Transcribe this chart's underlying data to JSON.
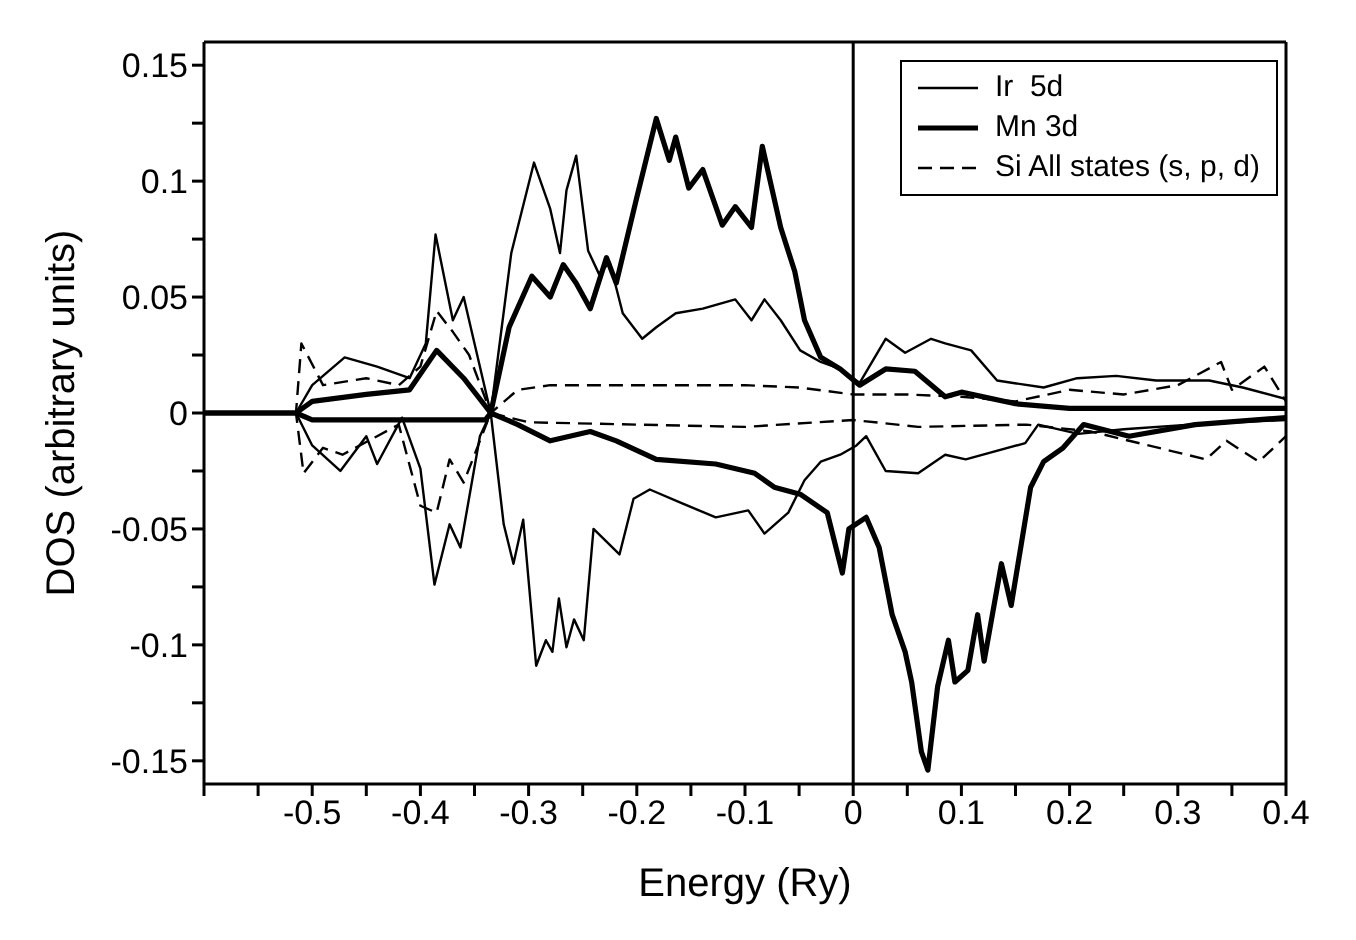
{
  "chart_data": {
    "type": "line",
    "xlabel": "Energy (Ry)",
    "ylabel": "DOS (arbitrary units)",
    "legend": "top right",
    "xlim": [
      -0.6,
      0.4
    ],
    "xticks": [
      {
        "value": -0.6,
        "label": null
      },
      {
        "value": -0.55,
        "label": null
      },
      -0.5,
      {
        "value": -0.45,
        "label": null
      },
      -0.4,
      {
        "value": -0.35,
        "label": null
      },
      -0.3,
      {
        "value": -0.25,
        "label": null
      },
      -0.2,
      {
        "value": -0.15,
        "label": null
      },
      -0.1,
      {
        "value": -0.05,
        "label": null
      },
      0,
      {
        "value": 0.05,
        "label": null
      },
      0.1,
      {
        "value": 0.15,
        "label": null
      },
      0.2,
      {
        "value": 0.25,
        "label": null
      },
      0.3,
      {
        "value": 0.35,
        "label": null
      },
      0.4
    ],
    "ylim": [
      -0.16,
      0.16
    ],
    "yticks": [
      -0.15,
      {
        "value": -0.125,
        "label": null
      },
      -0.1,
      {
        "value": -0.075,
        "label": null
      },
      -0.05,
      {
        "value": -0.025,
        "label": null
      },
      0,
      {
        "value": 0.025,
        "label": null
      },
      0.05,
      {
        "value": 0.075,
        "label": null
      },
      0.1,
      {
        "value": 0.125,
        "label": null
      },
      0.15
    ],
    "ref_lines": [
      {
        "axis": "x",
        "value": 0,
        "color": "#000000"
      }
    ],
    "series": [
      {
        "name": "Ir  5d",
        "color": "#000000",
        "line_style": "solid",
        "x": [
          -0.6,
          -0.515,
          -0.5,
          -0.47,
          -0.44,
          -0.41,
          -0.395,
          -0.386,
          -0.37,
          -0.36,
          -0.35,
          -0.335,
          -0.316,
          -0.295,
          -0.28,
          -0.271,
          -0.265,
          -0.256,
          -0.245,
          -0.235,
          -0.225,
          -0.213,
          -0.195,
          -0.182,
          -0.164,
          -0.139,
          -0.109,
          -0.094,
          -0.082,
          -0.067,
          -0.049,
          -0.03,
          -0.012,
          0.006,
          0.03,
          0.048,
          0.072,
          0.085,
          0.109,
          0.133,
          0.176,
          0.207,
          0.243,
          0.28,
          0.329,
          0.36,
          0.4
        ],
        "values": [
          0,
          0,
          0.012,
          0.024,
          0.02,
          0.015,
          0.03,
          0.077,
          0.04,
          0.05,
          0.03,
          0,
          0.069,
          0.108,
          0.088,
          0.069,
          0.096,
          0.111,
          0.07,
          0.06,
          0.065,
          0.043,
          0.032,
          0.037,
          0.043,
          0.045,
          0.049,
          0.04,
          0.049,
          0.04,
          0.027,
          0.022,
          0.019,
          0.013,
          0.032,
          0.026,
          0.032,
          0.03,
          0.027,
          0.014,
          0.011,
          0.015,
          0.016,
          0.014,
          0.014,
          0.011,
          0.006
        ]
      },
      {
        "name": "Mn 3d",
        "color": "#000000",
        "line_style": "solid",
        "x": [
          -0.6,
          -0.515,
          -0.5,
          -0.45,
          -0.41,
          -0.385,
          -0.36,
          -0.335,
          -0.318,
          -0.297,
          -0.28,
          -0.268,
          -0.256,
          -0.243,
          -0.228,
          -0.219,
          -0.2,
          -0.182,
          -0.17,
          -0.164,
          -0.152,
          -0.139,
          -0.121,
          -0.109,
          -0.094,
          -0.084,
          -0.067,
          -0.054,
          -0.045,
          -0.03,
          -0.012,
          0.006,
          0.03,
          0.057,
          0.085,
          0.1,
          0.15,
          0.2,
          0.3,
          0.4
        ],
        "values": [
          0,
          0,
          0.005,
          0.008,
          0.01,
          0.027,
          0.015,
          0,
          0.037,
          0.059,
          0.05,
          0.064,
          0.056,
          0.045,
          0.067,
          0.056,
          0.093,
          0.127,
          0.109,
          0.119,
          0.097,
          0.105,
          0.081,
          0.089,
          0.08,
          0.115,
          0.08,
          0.061,
          0.04,
          0.024,
          0.019,
          0.012,
          0.019,
          0.018,
          0.007,
          0.009,
          0.004,
          0.002,
          0.002,
          0.002
        ]
      },
      {
        "name": "Si All states (s, p, d)",
        "color": "#000000",
        "line_style": "dashed",
        "x": [
          -0.6,
          -0.515,
          -0.51,
          -0.49,
          -0.45,
          -0.42,
          -0.4,
          -0.385,
          -0.37,
          -0.355,
          -0.335,
          -0.31,
          -0.28,
          -0.2,
          -0.1,
          -0.05,
          0,
          0.05,
          0.1,
          0.15,
          0.2,
          0.25,
          0.3,
          0.34,
          0.35,
          0.38,
          0.4
        ],
        "values": [
          0,
          0,
          0.03,
          0.012,
          0.015,
          0.012,
          0.02,
          0.044,
          0.035,
          0.025,
          0,
          0.01,
          0.012,
          0.012,
          0.012,
          0.011,
          0.008,
          0.008,
          0.007,
          0.005,
          0.01,
          0.008,
          0.012,
          0.022,
          0.01,
          0.02,
          0.005
        ]
      },
      {
        "color": "#000000",
        "line_style": "solid",
        "x": [
          -0.6,
          -0.515,
          -0.5,
          -0.474,
          -0.45,
          -0.44,
          -0.417,
          -0.4,
          -0.387,
          -0.373,
          -0.363,
          -0.345,
          -0.335,
          -0.323,
          -0.314,
          -0.305,
          -0.293,
          -0.284,
          -0.278,
          -0.272,
          -0.265,
          -0.258,
          -0.249,
          -0.24,
          -0.216,
          -0.203,
          -0.188,
          -0.158,
          -0.127,
          -0.097,
          -0.082,
          -0.06,
          -0.045,
          -0.03,
          -0.012,
          0.003,
          0.012,
          0.03,
          0.06,
          0.085,
          0.104,
          0.159,
          0.171,
          0.208,
          0.25,
          0.311,
          0.4
        ],
        "values": [
          0,
          0,
          -0.014,
          -0.025,
          -0.01,
          -0.022,
          -0.002,
          -0.024,
          -0.074,
          -0.048,
          -0.058,
          -0.01,
          0,
          -0.048,
          -0.065,
          -0.046,
          -0.109,
          -0.098,
          -0.103,
          -0.08,
          -0.101,
          -0.089,
          -0.098,
          -0.05,
          -0.061,
          -0.037,
          -0.033,
          -0.039,
          -0.045,
          -0.042,
          -0.052,
          -0.043,
          -0.029,
          -0.021,
          -0.018,
          -0.014,
          -0.01,
          -0.025,
          -0.026,
          -0.018,
          -0.02,
          -0.013,
          -0.005,
          -0.009,
          -0.007,
          -0.005,
          -0.003
        ]
      },
      {
        "color": "#000000",
        "line_style": "solid",
        "x": [
          -0.6,
          -0.515,
          -0.5,
          -0.4,
          -0.34,
          -0.335,
          -0.31,
          -0.28,
          -0.243,
          -0.219,
          -0.182,
          -0.127,
          -0.091,
          -0.073,
          -0.049,
          -0.024,
          -0.01,
          -0.004,
          0.012,
          0.024,
          0.036,
          0.048,
          0.054,
          0.063,
          0.069,
          0.078,
          0.088,
          0.094,
          0.106,
          0.115,
          0.121,
          0.137,
          0.146,
          0.164,
          0.176,
          0.194,
          0.213,
          0.255,
          0.316,
          0.4
        ],
        "values": [
          0,
          0,
          -0.003,
          -0.003,
          -0.003,
          0,
          -0.005,
          -0.012,
          -0.008,
          -0.012,
          -0.02,
          -0.022,
          -0.026,
          -0.032,
          -0.035,
          -0.043,
          -0.069,
          -0.05,
          -0.045,
          -0.058,
          -0.087,
          -0.103,
          -0.116,
          -0.146,
          -0.154,
          -0.118,
          -0.098,
          -0.116,
          -0.111,
          -0.087,
          -0.107,
          -0.065,
          -0.083,
          -0.032,
          -0.021,
          -0.015,
          -0.005,
          -0.01,
          -0.005,
          -0.002
        ]
      },
      {
        "color": "#000000",
        "line_style": "dashed",
        "x": [
          -0.6,
          -0.515,
          -0.508,
          -0.49,
          -0.472,
          -0.44,
          -0.42,
          -0.4,
          -0.385,
          -0.373,
          -0.36,
          -0.335,
          -0.3,
          -0.2,
          -0.1,
          0,
          0.06,
          0.16,
          0.22,
          0.326,
          0.345,
          0.375,
          0.4
        ],
        "values": [
          0,
          0,
          -0.026,
          -0.015,
          -0.018,
          -0.01,
          -0.005,
          -0.04,
          -0.043,
          -0.02,
          -0.03,
          0,
          -0.004,
          -0.005,
          -0.006,
          -0.003,
          -0.006,
          -0.005,
          -0.008,
          -0.02,
          -0.012,
          -0.021,
          -0.01
        ]
      }
    ]
  }
}
